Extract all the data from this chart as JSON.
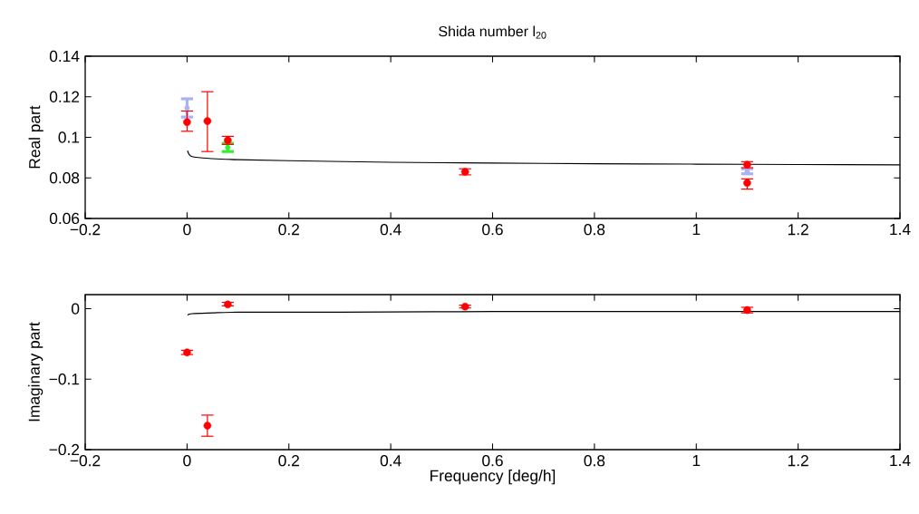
{
  "chart_data": [
    {
      "type": "scatter",
      "title": "Shida number l$_{20}$",
      "ylabel": "Real part",
      "xlim": [
        -0.2,
        1.4
      ],
      "xticks": [
        {
          "value": -0.2,
          "label": "−0.2"
        },
        0,
        0.2,
        0.4,
        0.6,
        0.8,
        1,
        1.2,
        1.4
      ],
      "ylim": [
        0.06,
        0.14
      ],
      "yticks": [
        0.06,
        0.08,
        0.1,
        0.12,
        0.14
      ],
      "series": [
        {
          "marker": "none",
          "color": "#aab2f2",
          "x": [
            0,
            1.1
          ],
          "values": [
            0.1145,
            0.083
          ],
          "errors": [
            [
              0.11,
              0.119
            ],
            [
              0.082,
              0.0845
            ]
          ]
        },
        {
          "marker": "none",
          "color": "#33ee33",
          "x": [
            0.08
          ],
          "values": [
            0.095
          ],
          "errors": [
            [
              0.093,
              0.097
            ]
          ]
        },
        {
          "marker": "circle",
          "color": "#ff0000",
          "x": [
            0,
            0.04,
            0.08,
            0.546,
            1.1,
            1.1
          ],
          "values": [
            0.1075,
            0.108,
            0.0985,
            0.083,
            0.0865,
            0.0775
          ],
          "errors": [
            [
              0.103,
              0.113
            ],
            [
              0.093,
              0.1225
            ],
            [
              0.0965,
              0.1005
            ],
            [
              0.0815,
              0.0845
            ],
            [
              0.085,
              0.088
            ],
            [
              0.0745,
              0.0795
            ]
          ]
        },
        {
          "type": "line",
          "color": "#000000",
          "x": [
            0.001,
            0.01,
            0.05,
            0.1,
            0.2,
            0.4,
            0.6,
            0.8,
            1.0,
            1.2,
            1.4
          ],
          "values": [
            0.0935,
            0.0905,
            0.0895,
            0.089,
            0.0885,
            0.0877,
            0.0873,
            0.087,
            0.0868,
            0.0866,
            0.0864
          ]
        }
      ]
    },
    {
      "type": "scatter",
      "ylabel": "Imaginary part",
      "xlabel": "Frequency [deg/h]",
      "xlim": [
        -0.2,
        1.4
      ],
      "xticks": [
        {
          "value": -0.2,
          "label": "−0.2"
        },
        0,
        0.2,
        0.4,
        0.6,
        0.8,
        1,
        1.2,
        1.4
      ],
      "ylim": [
        -0.2,
        0.02
      ],
      "yticks": [
        {
          "value": -0.2,
          "label": "−0.2"
        },
        {
          "value": -0.1,
          "label": "−0.1"
        },
        0
      ],
      "series": [
        {
          "marker": "circle",
          "color": "#ff0000",
          "x": [
            0,
            0.04,
            0.08,
            0.546,
            1.1
          ],
          "values": [
            -0.062,
            -0.166,
            0.006,
            0.003,
            -0.002
          ],
          "errors": [
            [
              -0.065,
              -0.059
            ],
            [
              -0.181,
              -0.151
            ],
            [
              0.004,
              0.009
            ],
            [
              0.001,
              0.005
            ],
            [
              -0.006,
              0.002
            ]
          ]
        },
        {
          "type": "line",
          "color": "#000000",
          "x": [
            0.001,
            0.01,
            0.05,
            0.1,
            0.3,
            0.6,
            1.0,
            1.4
          ],
          "values": [
            -0.009,
            -0.007,
            -0.006,
            -0.005,
            -0.005,
            -0.004,
            -0.004,
            -0.004
          ]
        }
      ]
    }
  ]
}
